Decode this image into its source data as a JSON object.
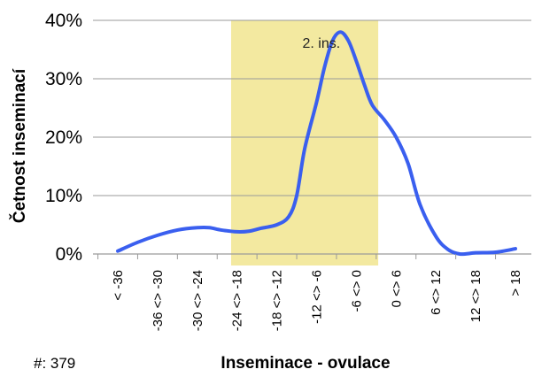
{
  "chart_data": {
    "type": "line",
    "ylabel": "Četnost inseminací",
    "xlabel": "Inseminace - ovulace",
    "footnote": "#:  379",
    "annotation": "2. ins.",
    "y_ticks": [
      "0%",
      "10%",
      "20%",
      "30%",
      "40%"
    ],
    "ylim": [
      0,
      40
    ],
    "grid": "horizontal",
    "categories": [
      "< -36",
      "-36 <> -30",
      "-30 <> -24",
      "-24 <> -18",
      "-18 <> -12",
      "-12 <> -6",
      "-6 <> 0",
      "0 <> 6",
      "6 <> 12",
      "12 <> 18",
      "> 18"
    ],
    "highlight_range": [
      3,
      6.6
    ],
    "highlight_color": "#f3e9a0",
    "line_color": "#3a5fef",
    "series": [
      {
        "points": [
          [
            0,
            0.5
          ],
          [
            0.5,
            2.0
          ],
          [
            1.0,
            3.2
          ],
          [
            1.5,
            4.1
          ],
          [
            2.0,
            4.5
          ],
          [
            2.3,
            4.5
          ],
          [
            2.6,
            4.1
          ],
          [
            3.0,
            3.8
          ],
          [
            3.3,
            3.9
          ],
          [
            3.6,
            4.4
          ],
          [
            4.0,
            5.0
          ],
          [
            4.3,
            6.4
          ],
          [
            4.5,
            10.0
          ],
          [
            4.7,
            18.0
          ],
          [
            5.0,
            26.0
          ],
          [
            5.2,
            32.0
          ],
          [
            5.4,
            36.5
          ],
          [
            5.6,
            38.0
          ],
          [
            5.8,
            36.5
          ],
          [
            6.0,
            33.0
          ],
          [
            6.2,
            29.0
          ],
          [
            6.4,
            25.5
          ],
          [
            6.7,
            23.0
          ],
          [
            7.0,
            20.0
          ],
          [
            7.3,
            15.5
          ],
          [
            7.6,
            8.5
          ],
          [
            8.0,
            3.0
          ],
          [
            8.3,
            0.8
          ],
          [
            8.6,
            0.0
          ],
          [
            9.0,
            0.2
          ],
          [
            9.5,
            0.3
          ],
          [
            10.0,
            0.9
          ]
        ]
      }
    ]
  }
}
